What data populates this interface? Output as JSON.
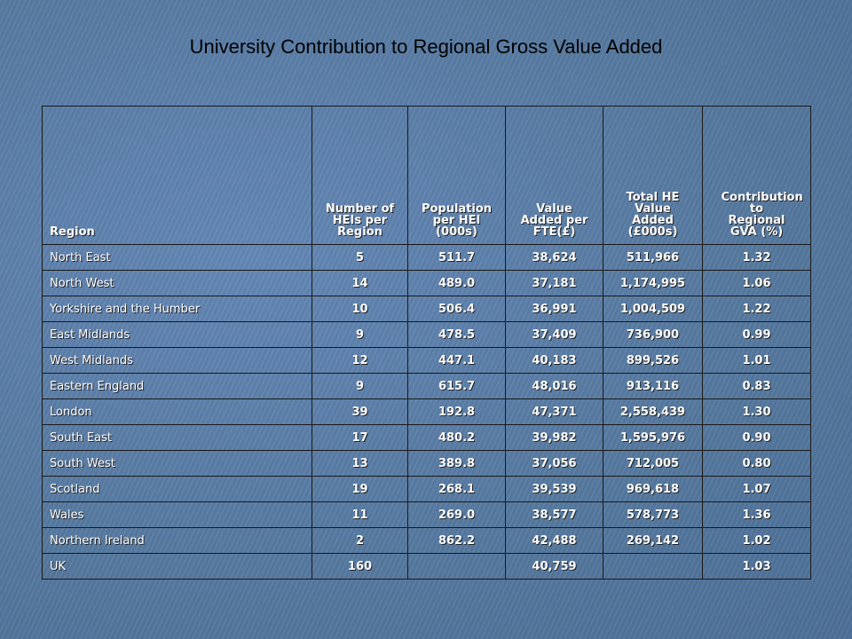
{
  "title": "University Contribution to Regional Gross Value Added",
  "chart_data": {
    "type": "table",
    "columns": [
      "Region",
      "Number of HEIs per Region",
      "Population per HEI (000s)",
      "Value Added per FTE(£)",
      "Total HE Value Added (£000s)",
      "Contribution to Regional GVA (%)"
    ],
    "rows": [
      [
        "North East",
        "5",
        "511.7",
        "38,624",
        "511,966",
        "1.32"
      ],
      [
        "North West",
        "14",
        "489.0",
        "37,181",
        "1,174,995",
        "1.06"
      ],
      [
        "Yorkshire and the Humber",
        "10",
        "506.4",
        "36,991",
        "1,004,509",
        "1.22"
      ],
      [
        "East Midlands",
        "9",
        "478.5",
        "37,409",
        "736,900",
        "0.99"
      ],
      [
        "West Midlands",
        "12",
        "447.1",
        "40,183",
        "899,526",
        "1.01"
      ],
      [
        "Eastern England",
        "9",
        "615.7",
        "48,016",
        "913,116",
        "0.83"
      ],
      [
        "London",
        "39",
        "192.8",
        "47,371",
        "2,558,439",
        "1.30"
      ],
      [
        "South East",
        "17",
        "480.2",
        "39,982",
        "1,595,976",
        "0.90"
      ],
      [
        "South West",
        "13",
        "389.8",
        "37,056",
        "712,005",
        "0.80"
      ],
      [
        "Scotland",
        "19",
        "268.1",
        "39,539",
        "969,618",
        "1.07"
      ],
      [
        "Wales",
        "11",
        "269.0",
        "38,577",
        "578,773",
        "1.36"
      ],
      [
        "Northern Ireland",
        "2",
        "862.2",
        "42,488",
        "269,142",
        "1.02"
      ],
      [
        "UK",
        "160",
        "",
        "40,759",
        "",
        "1.03"
      ]
    ]
  }
}
